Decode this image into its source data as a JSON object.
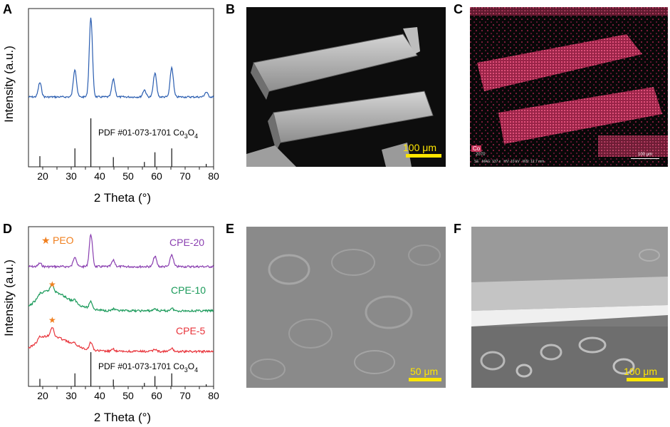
{
  "panels": {
    "a": {
      "letter": "A"
    },
    "b": {
      "letter": "B"
    },
    "c": {
      "letter": "C"
    },
    "d": {
      "letter": "D"
    },
    "e": {
      "letter": "E"
    },
    "f": {
      "letter": "F"
    }
  },
  "chart_data": [
    {
      "type": "line",
      "panel": "A",
      "xlabel": "2 Theta (°)",
      "ylabel": "Intensity (a.u.)",
      "xlim": [
        15,
        80
      ],
      "xticks": [
        20,
        25,
        30,
        35,
        40,
        45,
        50,
        55,
        60,
        65,
        70,
        75,
        80
      ],
      "reference_label_prefix": "PDF #01-073-1701 Co",
      "reference_label_sub1": "3",
      "reference_label_mid": "O",
      "reference_label_sub2": "4",
      "series": [
        {
          "color": "#2a5db0",
          "peaks": [
            [
              19,
              0.18
            ],
            [
              31.3,
              0.35
            ],
            [
              36.9,
              1.0
            ],
            [
              44.8,
              0.22
            ],
            [
              55.7,
              0.09
            ],
            [
              59.4,
              0.3
            ],
            [
              65.3,
              0.37
            ],
            [
              77.4,
              0.06
            ]
          ]
        }
      ],
      "reference_lines": [
        {
          "x": 19,
          "h": 0.22
        },
        {
          "x": 31.3,
          "h": 0.38
        },
        {
          "x": 36.9,
          "h": 1.0
        },
        {
          "x": 44.8,
          "h": 0.2
        },
        {
          "x": 55.7,
          "h": 0.1
        },
        {
          "x": 59.4,
          "h": 0.3
        },
        {
          "x": 65.3,
          "h": 0.38
        },
        {
          "x": 77.4,
          "h": 0.06
        }
      ]
    },
    {
      "type": "line",
      "panel": "D",
      "xlabel": "2 Theta (°)",
      "ylabel": "Intensity (a.u.)",
      "xlim": [
        15,
        80
      ],
      "xticks": [
        20,
        25,
        30,
        35,
        40,
        45,
        50,
        55,
        60,
        65,
        70,
        75,
        80
      ],
      "legend_marker_label": "PEO",
      "reference_label_prefix": "PDF #01-073-1701 Co",
      "reference_label_sub1": "3",
      "reference_label_mid": "O",
      "reference_label_sub2": "4",
      "series": [
        {
          "name": "CPE-20",
          "color": "#8a3fb0",
          "peaks": [
            [
              19,
              0.1
            ],
            [
              31.3,
              0.3
            ],
            [
              36.9,
              0.95
            ],
            [
              44.8,
              0.18
            ],
            [
              59.4,
              0.3
            ],
            [
              65.3,
              0.35
            ]
          ]
        },
        {
          "name": "CPE-10",
          "color": "#1a9a5a",
          "peaks": [
            [
              19,
              0.1
            ],
            [
              23.3,
              0.35
            ],
            [
              31.3,
              0.12
            ],
            [
              36.9,
              0.35
            ],
            [
              44.8,
              0.08
            ],
            [
              59.4,
              0.1
            ],
            [
              65.3,
              0.12
            ]
          ]
        },
        {
          "name": "CPE-5",
          "color": "#e8333a",
          "peaks": [
            [
              19,
              0.15
            ],
            [
              23.3,
              0.45
            ],
            [
              31.3,
              0.1
            ],
            [
              36.9,
              0.38
            ],
            [
              44.8,
              0.1
            ],
            [
              59.4,
              0.12
            ],
            [
              65.3,
              0.14
            ]
          ]
        }
      ],
      "reference_lines": [
        {
          "x": 19,
          "h": 0.22
        },
        {
          "x": 31.3,
          "h": 0.38
        },
        {
          "x": 36.9,
          "h": 1.0
        },
        {
          "x": 44.8,
          "h": 0.2
        },
        {
          "x": 55.7,
          "h": 0.1
        },
        {
          "x": 59.4,
          "h": 0.3
        },
        {
          "x": 65.3,
          "h": 0.38
        },
        {
          "x": 77.4,
          "h": 0.06
        }
      ]
    }
  ],
  "images": {
    "b": {
      "scale_label": "100 μm"
    },
    "c": {
      "element_label": "Co",
      "scale_label": "100 μm",
      "footer_text": "SE   MAG: 137 x   HV: 10 kV   WD: 12.7 mm",
      "footer_id": "2070"
    },
    "e": {
      "scale_label": "50 μm"
    },
    "f": {
      "scale_label": "100 μm"
    }
  },
  "colors": {
    "scale_bar": "#ffe600",
    "map_pink": "#c8325a"
  }
}
